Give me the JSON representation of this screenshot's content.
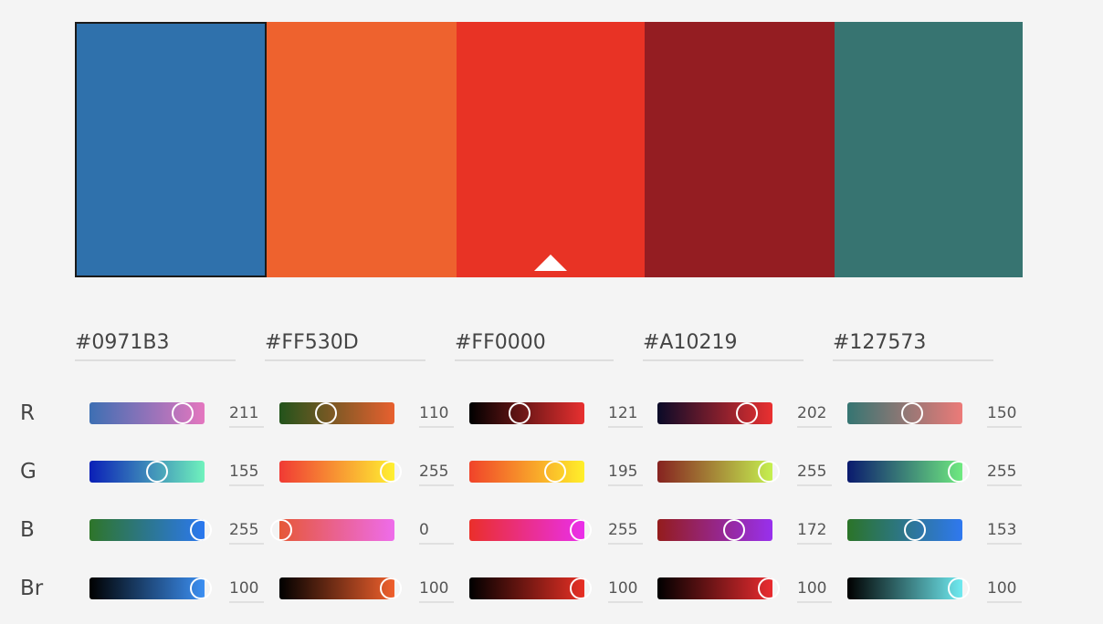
{
  "swatches": [
    {
      "hex": "#0971B3",
      "display": "#2F71AC"
    },
    {
      "hex": "#FF530D",
      "display": "#EE622E"
    },
    {
      "hex": "#FF0000",
      "display": "#E83325"
    },
    {
      "hex": "#A10219",
      "display": "#941D22"
    },
    {
      "hex": "#127573",
      "display": "#377471"
    }
  ],
  "selected_swatch": 0,
  "base_swatch": 2,
  "row_labels": [
    "R",
    "G",
    "B",
    "Br"
  ],
  "sliders": [
    [
      {
        "value": "211",
        "level": 0.79,
        "gradient": [
          "#3D6FB3",
          "#E476BF"
        ]
      },
      {
        "value": "155",
        "level": 0.57,
        "gradient": [
          "#0A1FB7",
          "#6FF2BC"
        ]
      },
      {
        "value": "255",
        "level": 0.95,
        "gradient": [
          "#2E7529",
          "#2B78F0"
        ]
      },
      {
        "value": "100",
        "level": 0.95,
        "gradient": [
          "#000000",
          "#3C8FF2"
        ]
      }
    ],
    [
      {
        "value": "110",
        "level": 0.39,
        "gradient": [
          "#22531B",
          "#E8602F"
        ]
      },
      {
        "value": "255",
        "level": 0.95,
        "gradient": [
          "#F03A34",
          "#FFF032"
        ]
      },
      {
        "value": "0",
        "level": 0.0,
        "gradient": [
          "#E65838",
          "#EE6CEB"
        ]
      },
      {
        "value": "100",
        "level": 0.95,
        "gradient": [
          "#000000",
          "#F0602D"
        ]
      }
    ],
    [
      {
        "value": "121",
        "level": 0.42,
        "gradient": [
          "#000000",
          "#E83030"
        ]
      },
      {
        "value": "195",
        "level": 0.73,
        "gradient": [
          "#F0432A",
          "#FFF02A"
        ]
      },
      {
        "value": "255",
        "level": 0.95,
        "gradient": [
          "#EA2F2A",
          "#EA2FEB"
        ]
      },
      {
        "value": "100",
        "level": 0.95,
        "gradient": [
          "#000000",
          "#E83025"
        ]
      }
    ],
    [
      {
        "value": "202",
        "level": 0.76,
        "gradient": [
          "#0A0A28",
          "#EA3030"
        ]
      },
      {
        "value": "255",
        "level": 0.95,
        "gradient": [
          "#862220",
          "#C5F050"
        ]
      },
      {
        "value": "172",
        "level": 0.65,
        "gradient": [
          "#941C1C",
          "#9830EE"
        ]
      },
      {
        "value": "100",
        "level": 0.95,
        "gradient": [
          "#000000",
          "#EA2C30"
        ]
      }
    ],
    [
      {
        "value": "150",
        "level": 0.55,
        "gradient": [
          "#357572",
          "#EC7A78"
        ]
      },
      {
        "value": "255",
        "level": 0.95,
        "gradient": [
          "#0A1A6E",
          "#6FEA80"
        ]
      },
      {
        "value": "153",
        "level": 0.57,
        "gradient": [
          "#2B7428",
          "#2F78F0"
        ]
      },
      {
        "value": "100",
        "level": 0.95,
        "gradient": [
          "#000000",
          "#6FEAF0"
        ]
      }
    ]
  ]
}
